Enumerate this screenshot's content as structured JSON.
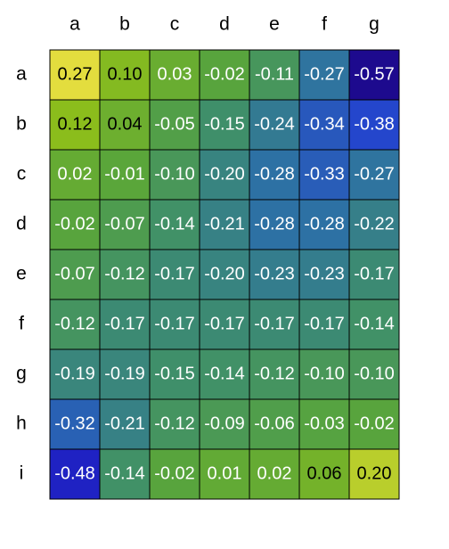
{
  "chart_data": {
    "type": "heatmap",
    "columns": [
      "a",
      "b",
      "c",
      "d",
      "e",
      "f",
      "g"
    ],
    "rows": [
      "a",
      "b",
      "c",
      "d",
      "e",
      "f",
      "g",
      "h",
      "i"
    ],
    "values": [
      [
        "0.27",
        "0.10",
        "0.03",
        "-0.02",
        "-0.11",
        "-0.27",
        "-0.57"
      ],
      [
        "0.12",
        "0.04",
        "-0.05",
        "-0.15",
        "-0.24",
        "-0.34",
        "-0.38"
      ],
      [
        "0.02",
        "-0.01",
        "-0.10",
        "-0.20",
        "-0.28",
        "-0.33",
        "-0.27"
      ],
      [
        "-0.02",
        "-0.07",
        "-0.14",
        "-0.21",
        "-0.28",
        "-0.28",
        "-0.22"
      ],
      [
        "-0.07",
        "-0.12",
        "-0.17",
        "-0.20",
        "-0.23",
        "-0.23",
        "-0.17"
      ],
      [
        "-0.12",
        "-0.17",
        "-0.17",
        "-0.17",
        "-0.17",
        "-0.17",
        "-0.14"
      ],
      [
        "-0.19",
        "-0.19",
        "-0.15",
        "-0.14",
        "-0.12",
        "-0.10",
        "-0.10"
      ],
      [
        "-0.32",
        "-0.21",
        "-0.12",
        "-0.09",
        "-0.06",
        "-0.03",
        "-0.02"
      ],
      [
        "-0.48",
        "-0.14",
        "-0.02",
        "0.01",
        "0.02",
        "0.06",
        "0.20"
      ]
    ],
    "color_scale": {
      "min": -0.57,
      "max": 0.27,
      "stops": [
        "#1d0a8e",
        "#2030e0",
        "#2c6fa8",
        "#3f8f6a",
        "#5aa63a",
        "#8fbf1a",
        "#e3dd3e"
      ]
    },
    "grid": false
  }
}
